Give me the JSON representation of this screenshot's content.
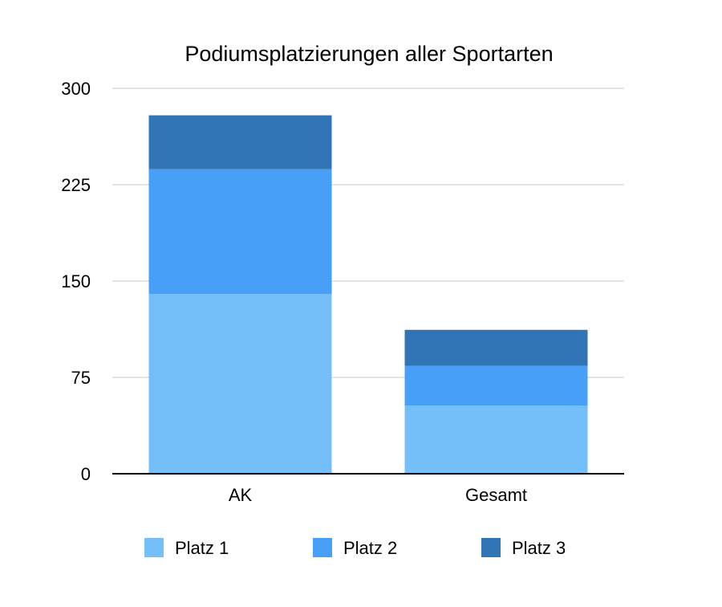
{
  "chart_data": {
    "type": "bar",
    "stacked": true,
    "title": "Podiumsplatzierungen aller Sportarten",
    "xlabel": "",
    "ylabel": "",
    "categories": [
      "AK",
      "Gesamt"
    ],
    "series": [
      {
        "name": "Platz 1",
        "values": [
          140,
          53
        ],
        "color": "#74BEF9"
      },
      {
        "name": "Platz 2",
        "values": [
          97,
          31
        ],
        "color": "#479FF8"
      },
      {
        "name": "Platz 3",
        "values": [
          42,
          28
        ],
        "color": "#3275B7"
      }
    ],
    "ylim": [
      0,
      300
    ],
    "yticks": [
      0,
      75,
      150,
      225,
      300
    ],
    "grid": true,
    "legend_position": "bottom"
  }
}
